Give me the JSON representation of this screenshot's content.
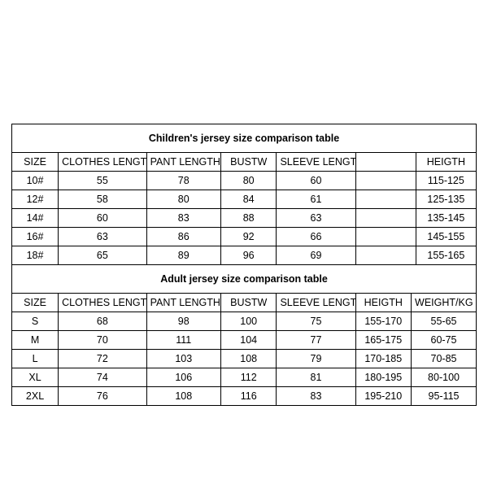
{
  "children": {
    "title": "Children's jersey size comparison table",
    "columns": [
      "SIZE",
      "CLOTHES LENGTH",
      "PANT LENGTH",
      "BUSTW",
      "SLEEVE LENGTH",
      "",
      "HEIGTH"
    ],
    "rows": [
      [
        "10#",
        "55",
        "78",
        "80",
        "60",
        "",
        "115-125"
      ],
      [
        "12#",
        "58",
        "80",
        "84",
        "61",
        "",
        "125-135"
      ],
      [
        "14#",
        "60",
        "83",
        "88",
        "63",
        "",
        "135-145"
      ],
      [
        "16#",
        "63",
        "86",
        "92",
        "66",
        "",
        "145-155"
      ],
      [
        "18#",
        "65",
        "89",
        "96",
        "69",
        "",
        "155-165"
      ]
    ],
    "border_color": "#000000",
    "text_color": "#000000",
    "background": "#ffffff",
    "title_fontsize": 17,
    "cell_fontsize": 12.5
  },
  "adult": {
    "title": "Adult jersey size comparison table",
    "columns": [
      "SIZE",
      "CLOTHES LENGTH",
      "PANT LENGTH",
      "BUSTW",
      "SLEEVE LENGTH",
      "HEIGTH",
      "WEIGHT/KG"
    ],
    "rows": [
      [
        "S",
        "68",
        "98",
        "100",
        "75",
        "155-170",
        "55-65"
      ],
      [
        "M",
        "70",
        "111",
        "104",
        "77",
        "165-175",
        "60-75"
      ],
      [
        "L",
        "72",
        "103",
        "108",
        "79",
        "170-185",
        "70-85"
      ],
      [
        "XL",
        "74",
        "106",
        "112",
        "81",
        "180-195",
        "80-100"
      ],
      [
        "2XL",
        "76",
        "108",
        "116",
        "83",
        "195-210",
        "95-115"
      ]
    ],
    "border_color": "#000000",
    "text_color": "#000000",
    "background": "#ffffff",
    "title_fontsize": 17,
    "cell_fontsize": 12.5
  }
}
